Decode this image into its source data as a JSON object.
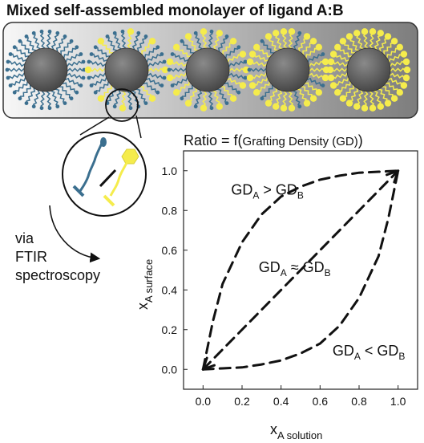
{
  "title": "Mixed self-assembled monolayer of ligand A:B",
  "colors": {
    "ligand_a": "#3b6f8f",
    "ligand_b": "#f5ec4c",
    "core": "#5a5a5a",
    "panel_light": "#f7f7f7",
    "panel_dark": "#7d7d7d"
  },
  "particles": [
    {
      "fraction_b": 0.0
    },
    {
      "fraction_b": 0.25
    },
    {
      "fraction_b": 0.5
    },
    {
      "fraction_b": 0.75
    },
    {
      "fraction_b": 1.0
    }
  ],
  "method": {
    "line1": "via",
    "line2": "FTIR",
    "line3": "spectroscopy"
  },
  "chart_data": {
    "type": "line",
    "title_main": "Ratio = f(",
    "title_inner": "Grafting Density (GD)",
    "title_close": ")",
    "xlabel_main": "x",
    "xlabel_sub": "A solution",
    "ylabel_main": "x",
    "ylabel_sub": "A surface",
    "xlim": [
      -0.1,
      1.1
    ],
    "ylim": [
      -0.1,
      1.1
    ],
    "xticks": [
      "0.0",
      "0.2",
      "0.4",
      "0.6",
      "0.8",
      "1.0"
    ],
    "yticks": [
      "0.0",
      "0.2",
      "0.4",
      "0.6",
      "0.8",
      "1.0"
    ],
    "series": [
      {
        "points": [
          [
            0,
            0
          ],
          [
            0.05,
            0.24
          ],
          [
            0.1,
            0.43
          ],
          [
            0.2,
            0.64
          ],
          [
            0.3,
            0.78
          ],
          [
            0.4,
            0.87
          ],
          [
            0.5,
            0.92
          ],
          [
            0.6,
            0.955
          ],
          [
            0.7,
            0.975
          ],
          [
            0.8,
            0.99
          ],
          [
            0.9,
            0.995
          ],
          [
            1,
            1
          ]
        ]
      },
      {
        "points": [
          [
            0,
            0
          ],
          [
            1,
            1
          ]
        ]
      },
      {
        "points": [
          [
            0,
            0
          ],
          [
            0.1,
            0.005
          ],
          [
            0.2,
            0.01
          ],
          [
            0.3,
            0.025
          ],
          [
            0.4,
            0.045
          ],
          [
            0.5,
            0.08
          ],
          [
            0.6,
            0.13
          ],
          [
            0.7,
            0.22
          ],
          [
            0.8,
            0.36
          ],
          [
            0.9,
            0.57
          ],
          [
            0.95,
            0.76
          ],
          [
            1,
            1
          ]
        ]
      }
    ],
    "annotations": [
      {
        "x": 0.33,
        "y": 0.88,
        "a_label": "GD",
        "a_sub": "A",
        "op": " > ",
        "b_label": "GD",
        "b_sub": "B"
      },
      {
        "x": 0.47,
        "y": 0.49,
        "a_label": "GD",
        "a_sub": "A",
        "op": " ≈ ",
        "b_label": "GD",
        "b_sub": "B"
      },
      {
        "x": 0.85,
        "y": 0.07,
        "a_label": "GD",
        "a_sub": "A",
        "op": " < ",
        "b_label": "GD",
        "b_sub": "B"
      }
    ]
  }
}
